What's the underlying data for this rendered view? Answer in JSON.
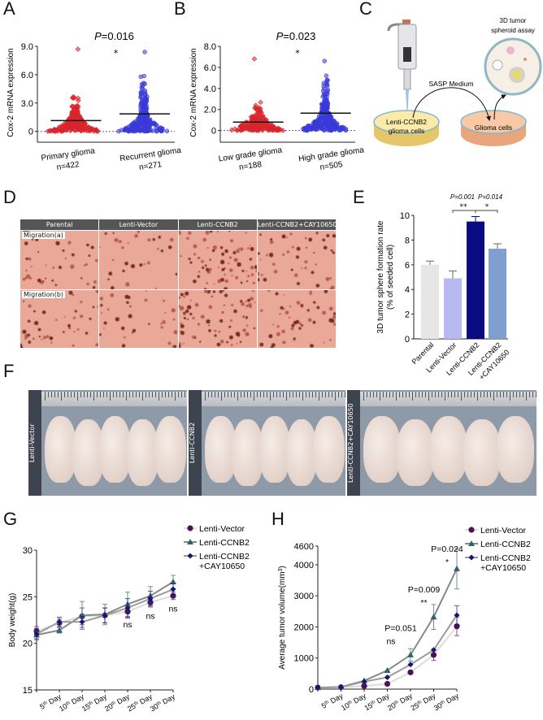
{
  "panels": {
    "A": "A",
    "B": "B",
    "C": "C",
    "D": "D",
    "E": "E",
    "F": "F",
    "G": "G",
    "H": "H"
  },
  "colors": {
    "red": "#d8262c",
    "blue": "#3a3ad8",
    "parental": "#e6e6e6",
    "vector": "#b9b9f2",
    "ccnb2": "#0a0a82",
    "cay": "#7f9fd2",
    "g_vector": "#4a1358",
    "g_ccnb2": "#2f6468",
    "g_cay": "#14147a"
  },
  "chart_data": [
    {
      "panel": "A",
      "type": "scatter",
      "title_p": "P",
      "title_rest": "=0.016",
      "significance": "*",
      "ylabel": "Cox-2 mRNA expression",
      "ylim": [
        -0.8,
        9.0
      ],
      "yticks": [
        "0",
        "3.0",
        "6.0",
        "9.0"
      ],
      "yticks_values": [
        0,
        3,
        6,
        9
      ],
      "groups": [
        {
          "label": "Primary glioma",
          "n": "n=422",
          "mean": 1.15,
          "max": 8.7,
          "count": 422
        },
        {
          "label": "Recurrent glioma",
          "n": "n=271",
          "mean": 1.85,
          "max": 8.4,
          "count": 271
        }
      ]
    },
    {
      "panel": "B",
      "type": "scatter",
      "title_p": "P",
      "title_rest": "=0.023",
      "significance": "*",
      "ylabel": "Cox-2 mRNA expression",
      "ylim": [
        -0.8,
        8.0
      ],
      "yticks": [
        "0",
        "2.0",
        "4.0",
        "6.0",
        "8.0"
      ],
      "yticks_values": [
        0,
        2,
        4,
        6,
        8
      ],
      "groups": [
        {
          "label": "Low grade glioma",
          "n": "n=188",
          "mean": 0.8,
          "max": 6.8,
          "count": 188
        },
        {
          "label": "High grade glioma",
          "n": "n=505",
          "mean": 1.65,
          "max": 6.6,
          "count": 505
        }
      ]
    },
    {
      "panel": "E",
      "type": "bar",
      "ylabel1": "3D tumor sphere formation rate",
      "ylabel2": "(% of seeded cell)",
      "ylim": [
        0,
        10
      ],
      "yticks": [
        "0",
        "2",
        "4",
        "6",
        "8",
        "10"
      ],
      "yticks_values": [
        0,
        2,
        4,
        6,
        8,
        10
      ],
      "categories": [
        "Parental",
        "Lenti-Vector",
        "Lenti-CCNB2",
        "Lenti-CCNB2\n+CAY10650"
      ],
      "category_line1": [
        "Parental",
        "Lenti-Vector",
        "Lenti-CCNB2",
        "Lenti-CCNB2"
      ],
      "category_line2": [
        "",
        "",
        "",
        "+CAY10650"
      ],
      "values": [
        6.0,
        4.9,
        9.5,
        7.3
      ],
      "errors": [
        0.3,
        0.6,
        0.4,
        0.4
      ],
      "comparisons": [
        {
          "p": "P=0.001",
          "stars": "**"
        },
        {
          "p": "P=0.014",
          "stars": "*"
        }
      ]
    },
    {
      "panel": "G",
      "type": "line",
      "ylabel": "Body weight(g)",
      "ylim": [
        15,
        30
      ],
      "yticks": [
        "15",
        "20",
        "25",
        "30"
      ],
      "yticks_values": [
        15,
        20,
        25,
        30
      ],
      "x": [
        "",
        "5th Day",
        "10th Day",
        "15th Day",
        "20th Day",
        "25th Day",
        "30th Day"
      ],
      "series": [
        {
          "name": "Lenti-Vector",
          "marker": "circle",
          "values": [
            21.3,
            22.2,
            22.9,
            23.0,
            23.4,
            24.4,
            25.1
          ],
          "errors": [
            0.5,
            0.4,
            0.9,
            0.8,
            0.7,
            0.5,
            0.4
          ]
        },
        {
          "name": "Lenti-CCNB2",
          "marker": "triangle",
          "values": [
            20.9,
            21.4,
            23.0,
            23.1,
            24.2,
            25.1,
            26.6
          ],
          "errors": [
            0.4,
            0.3,
            1.5,
            1.1,
            1.3,
            1.0,
            0.7
          ]
        },
        {
          "name": "Lenti-CCNB2\n+CAY10650",
          "marker": "diamond",
          "values": [
            21.0,
            22.3,
            22.3,
            23.0,
            23.8,
            24.8,
            25.8
          ],
          "errors": [
            0.6,
            0.5,
            0.6,
            0.8,
            1.0,
            0.8,
            0.6
          ]
        }
      ],
      "legend": [
        "Lenti-Vector",
        "Lenti-CCNB2",
        "Lenti-CCNB2",
        "+CAY10650"
      ],
      "annotations": [
        {
          "x": "20th Day",
          "text": "ns"
        },
        {
          "x": "25th Day",
          "text": "ns"
        },
        {
          "x": "30th Day",
          "text": "ns"
        }
      ]
    },
    {
      "panel": "H",
      "type": "line",
      "ylabel": "Average tumor volume(mm",
      "ylabel_sup": "3",
      "ylabel_end": ")",
      "ylim": [
        0,
        4600
      ],
      "yticks": [
        "0",
        "1000",
        "2000",
        "3000",
        "4000",
        "4600"
      ],
      "yticks_values": [
        0,
        1000,
        2000,
        3000,
        4000,
        4600
      ],
      "x": [
        "",
        "5th Day",
        "10th Day",
        "15th Day",
        "20th Day",
        "25th Day",
        "30th Day"
      ],
      "series": [
        {
          "name": "Lenti-Vector",
          "marker": "circle",
          "values": [
            50,
            60,
            100,
            170,
            540,
            1100,
            2020
          ],
          "errors": [
            0,
            0,
            0,
            0,
            0,
            180,
            300
          ]
        },
        {
          "name": "Lenti-CCNB2",
          "marker": "triangle",
          "values": [
            50,
            70,
            270,
            600,
            1100,
            2320,
            3870
          ],
          "errors": [
            0,
            0,
            0,
            0,
            200,
            400,
            650
          ]
        },
        {
          "name": "Lenti-CCNB2\n+CAY10650",
          "marker": "diamond",
          "values": [
            50,
            65,
            240,
            380,
            790,
            1260,
            2380
          ],
          "errors": [
            0,
            0,
            0,
            0,
            0,
            0,
            300
          ]
        }
      ],
      "legend": [
        "Lenti-Vector",
        "Lenti-CCNB2",
        "Lenti-CCNB2",
        "+CAY10650"
      ],
      "annotations": [
        {
          "x": "20th Day",
          "p": "P=0.051",
          "stars": "ns"
        },
        {
          "x": "25th Day",
          "p": "P=0.009",
          "stars": "**"
        },
        {
          "x": "30th Day",
          "p": "P=0.024",
          "stars": "*"
        }
      ]
    }
  ],
  "schematic": {
    "assay_line1": "3D tumor",
    "assay_line2": "spheroid assay",
    "medium": "SASP Medium",
    "dish1_line1": "Lenti-CCNB2",
    "dish1_line2": "glioma cells",
    "dish2": "Glioma cells"
  },
  "migration": {
    "columns": [
      "Parental",
      "Lenti-Vector",
      "Lenti-CCNB2",
      "Lenti-CCNB2+CAY10650"
    ],
    "rows": [
      "Migration(a)",
      "Migration(b)"
    ]
  },
  "mice": {
    "groups": [
      "Lenti-Vector",
      "Lenti-CCNB2",
      "Lenti-CCNB2+CAY10650"
    ]
  }
}
